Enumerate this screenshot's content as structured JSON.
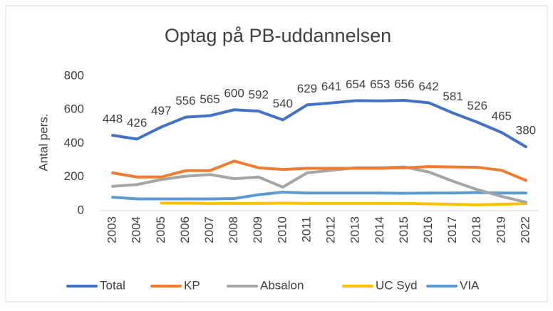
{
  "chart_data": {
    "type": "line",
    "title": "Optag på PB-uddannelsen",
    "y_label": "Antal pers.",
    "categories": [
      "2003",
      "2004",
      "2005",
      "2006",
      "2007",
      "2008",
      "2009",
      "2010",
      "2011",
      "2012",
      "2013",
      "2014",
      "2015",
      "2016",
      "2017",
      "2018",
      "2019",
      "2022"
    ],
    "series": [
      {
        "name": "Total",
        "color": "#4472c4",
        "values": [
          448,
          426,
          497,
          556,
          565,
          600,
          592,
          540,
          629,
          641,
          654,
          653,
          656,
          642,
          581,
          526,
          465,
          380
        ],
        "labels": true
      },
      {
        "name": "KP",
        "color": "#ed7d31",
        "values": [
          225,
          200,
          200,
          238,
          238,
          295,
          255,
          245,
          252,
          252,
          252,
          252,
          255,
          262,
          260,
          258,
          240,
          180
        ]
      },
      {
        "name": "Absalon",
        "color": "#a5a5a5",
        "values": [
          145,
          155,
          185,
          205,
          215,
          190,
          200,
          140,
          225,
          240,
          255,
          255,
          260,
          230,
          175,
          125,
          85,
          50
        ]
      },
      {
        "name": "UC Syd",
        "color": "#ffc000",
        "values": [
          null,
          null,
          45,
          45,
          43,
          43,
          43,
          45,
          43,
          43,
          43,
          43,
          43,
          40,
          38,
          35,
          38,
          42
        ]
      },
      {
        "name": "VIA",
        "color": "#5b9bd5",
        "values": [
          80,
          70,
          70,
          70,
          70,
          72,
          95,
          110,
          105,
          105,
          105,
          105,
          103,
          105,
          105,
          108,
          105,
          105
        ]
      }
    ],
    "ylim": [
      0,
      800
    ],
    "yticks": [
      0,
      200,
      400,
      600,
      800
    ],
    "grid": false,
    "legend": "bottom"
  }
}
